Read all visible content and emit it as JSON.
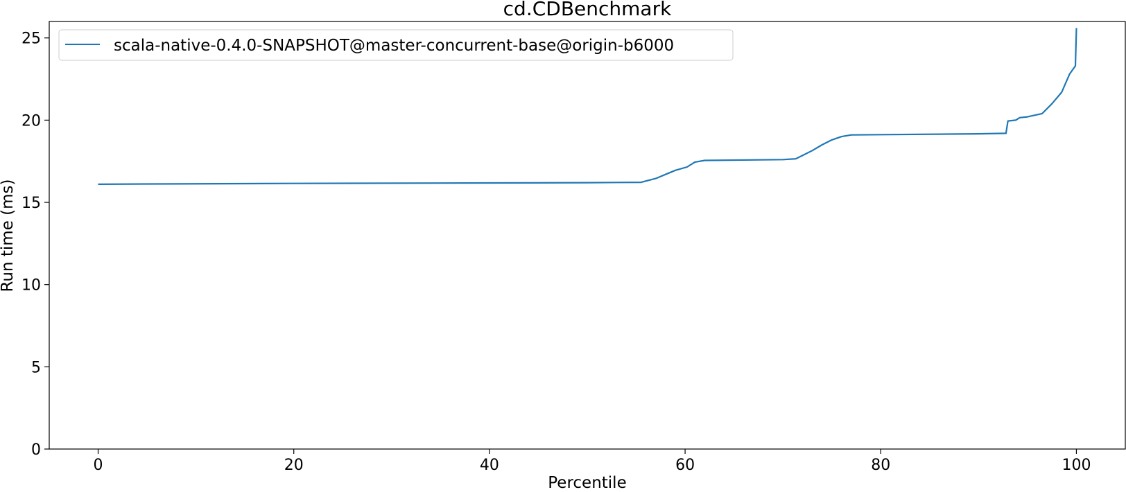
{
  "chart_data": {
    "type": "line",
    "title": "cd.CDBenchmark",
    "xlabel": "Percentile",
    "ylabel": "Run time (ms)",
    "xlim": [
      -5,
      105
    ],
    "ylim": [
      0,
      26
    ],
    "xticks": [
      0,
      20,
      40,
      60,
      80,
      100
    ],
    "yticks": [
      0,
      5,
      10,
      15,
      20,
      25
    ],
    "grid": false,
    "legend_position": "top-left",
    "series": [
      {
        "name": "scala-native-0.4.0-SNAPSHOT@master-concurrent-base@origin-b6000",
        "color": "#1f77b4",
        "points": [
          [
            0,
            16.1
          ],
          [
            5,
            16.12
          ],
          [
            20,
            16.15
          ],
          [
            40,
            16.18
          ],
          [
            50,
            16.2
          ],
          [
            55.5,
            16.22
          ],
          [
            56,
            16.3
          ],
          [
            57,
            16.45
          ],
          [
            58,
            16.7
          ],
          [
            59,
            16.95
          ],
          [
            60.2,
            17.15
          ],
          [
            61,
            17.45
          ],
          [
            62,
            17.55
          ],
          [
            70,
            17.6
          ],
          [
            71.3,
            17.65
          ],
          [
            72,
            17.85
          ],
          [
            73,
            18.15
          ],
          [
            74,
            18.5
          ],
          [
            75,
            18.8
          ],
          [
            76,
            19.0
          ],
          [
            77,
            19.1
          ],
          [
            80,
            19.12
          ],
          [
            90,
            19.17
          ],
          [
            92.8,
            19.2
          ],
          [
            93,
            19.95
          ],
          [
            93.8,
            20.0
          ],
          [
            94.2,
            20.15
          ],
          [
            95,
            20.2
          ],
          [
            96.5,
            20.4
          ],
          [
            97.5,
            21.0
          ],
          [
            98.5,
            21.7
          ],
          [
            99.3,
            22.8
          ],
          [
            99.9,
            23.3
          ],
          [
            100,
            25.6
          ]
        ]
      }
    ]
  }
}
